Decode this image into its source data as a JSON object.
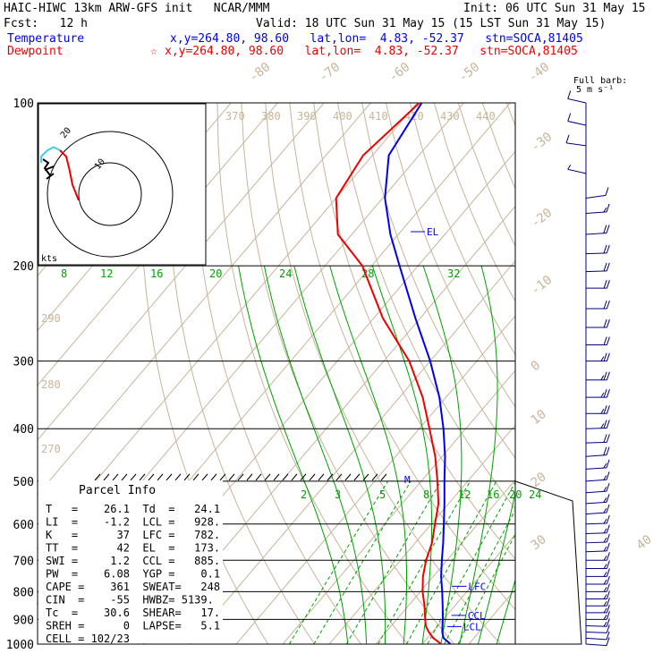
{
  "header": {
    "model": "HAIC-HIWC 13km ARW-GFS init   NCAR/MMM",
    "init": "Init: 06 UTC Sun 31 May 15",
    "fcst": "Fcst:   12 h",
    "valid": "Valid: 18 UTC Sun 31 May 15 (15 LST Sun 31 May 15)",
    "temp_label": "Temperature",
    "temp_info": "x,y=264.80, 98.60   lat,lon=  4.83, -52.37   stn=SOCA,81405",
    "dew_label": "Dewpoint",
    "dew_info": "x,y=264.80, 98.60   lat,lon=  4.83, -52.37   stn=SOCA,81405",
    "dew_marker": "☆",
    "barb_title_1": "Full barb:",
    "barb_title_2": "5 m s⁻¹"
  },
  "parcel": {
    "title": "Parcel Info",
    "rows": [
      "T   =    26.1  Td  =   24.1",
      "LI  =    -1.2  LCL =   928.",
      "K   =      37  LFC =   782.",
      "TT  =      42  EL  =   173.",
      "SWI =     1.2  CCL =   885.",
      "PW  =    6.08  YGP =    0.1",
      "CAPE =    361  SWEAT=   248",
      "CIN  =    -55  HWBZ= 5139.",
      "Tc  =    30.6  SHEAR=   17.",
      "SREH =      0  LAPSE=   5.1",
      "CELL = 102/23"
    ]
  },
  "levels": {
    "el": "EL",
    "lfc": "LFC",
    "ccl": "CCL",
    "lcl": "LCL",
    "m": "M"
  },
  "hodograph": {
    "units": "kts",
    "ring_labels": [
      "10",
      "20"
    ]
  },
  "colors": {
    "temperature": "#0000ee",
    "dewpoint": "#ee0000",
    "isotherm": "#c8b49a",
    "adiabat": "#00a000",
    "barb": "#000080",
    "hodo": "#44ccee"
  },
  "chart_data": {
    "type": "skew-t",
    "pressure_ticks": [
      100,
      200,
      300,
      400,
      500,
      600,
      700,
      800,
      900,
      1000
    ],
    "isotherm_labels": [
      "-80",
      "-70",
      "-60",
      "-50",
      "-40",
      "-30",
      "-20",
      "-10",
      "0",
      "10",
      "20",
      "30",
      "40"
    ],
    "theta_labels": [
      "370",
      "380",
      "390",
      "400",
      "410",
      "420",
      "430",
      "440"
    ],
    "theta_low_labels": [
      "290",
      "280",
      "270"
    ],
    "moist_labels": [
      "8",
      "12",
      "16",
      "20",
      "24",
      "28",
      "32"
    ],
    "mixing_labels": [
      "2",
      "3",
      "5",
      "8",
      "12",
      "16",
      "20",
      "24"
    ],
    "temperature_profile": [
      {
        "p": 1000,
        "t": 26.1
      },
      {
        "p": 975,
        "t": 23.5
      },
      {
        "p": 950,
        "t": 22.1
      },
      {
        "p": 925,
        "t": 21.0
      },
      {
        "p": 900,
        "t": 19.9
      },
      {
        "p": 850,
        "t": 17.4
      },
      {
        "p": 800,
        "t": 14.7
      },
      {
        "p": 750,
        "t": 11.7
      },
      {
        "p": 700,
        "t": 8.9
      },
      {
        "p": 650,
        "t": 6.0
      },
      {
        "p": 600,
        "t": 2.7
      },
      {
        "p": 550,
        "t": -0.9
      },
      {
        "p": 500,
        "t": -5.0
      },
      {
        "p": 450,
        "t": -9.4
      },
      {
        "p": 400,
        "t": -14.8
      },
      {
        "p": 350,
        "t": -21.4
      },
      {
        "p": 300,
        "t": -30.0
      },
      {
        "p": 250,
        "t": -41.0
      },
      {
        "p": 200,
        "t": -54.0
      },
      {
        "p": 175,
        "t": -61.7
      },
      {
        "p": 150,
        "t": -69.5
      },
      {
        "p": 125,
        "t": -76.5
      },
      {
        "p": 100,
        "t": -79.0
      }
    ],
    "dewpoint_profile": [
      {
        "p": 1000,
        "t": 24.1
      },
      {
        "p": 975,
        "t": 21.3
      },
      {
        "p": 950,
        "t": 19.2
      },
      {
        "p": 925,
        "t": 17.4
      },
      {
        "p": 900,
        "t": 16.1
      },
      {
        "p": 850,
        "t": 13.5
      },
      {
        "p": 800,
        "t": 10.5
      },
      {
        "p": 750,
        "t": 7.8
      },
      {
        "p": 700,
        "t": 5.5
      },
      {
        "p": 650,
        "t": 3.6
      },
      {
        "p": 600,
        "t": 0.8
      },
      {
        "p": 550,
        "t": -2.2
      },
      {
        "p": 500,
        "t": -6.5
      },
      {
        "p": 450,
        "t": -11.5
      },
      {
        "p": 400,
        "t": -17.8
      },
      {
        "p": 350,
        "t": -25.0
      },
      {
        "p": 300,
        "t": -34.5
      },
      {
        "p": 250,
        "t": -48.0
      },
      {
        "p": 200,
        "t": -62.0
      },
      {
        "p": 175,
        "t": -73.0
      },
      {
        "p": 150,
        "t": -80.0
      },
      {
        "p": 125,
        "t": -82.0
      },
      {
        "p": 100,
        "t": -79.5
      }
    ],
    "wind_barbs": [
      {
        "p": 100,
        "dir": 300,
        "speed": 10
      },
      {
        "p": 110,
        "dir": 300,
        "speed": 10
      },
      {
        "p": 120,
        "dir": 290,
        "speed": 10
      },
      {
        "p": 135,
        "dir": 300,
        "speed": 5
      },
      {
        "p": 150,
        "dir": 70,
        "speed": 10
      },
      {
        "p": 160,
        "dir": 80,
        "speed": 15
      },
      {
        "p": 175,
        "dir": 80,
        "speed": 20
      },
      {
        "p": 190,
        "dir": 85,
        "speed": 20
      },
      {
        "p": 205,
        "dir": 85,
        "speed": 20
      },
      {
        "p": 220,
        "dir": 90,
        "speed": 20
      },
      {
        "p": 240,
        "dir": 90,
        "speed": 20
      },
      {
        "p": 260,
        "dir": 90,
        "speed": 20
      },
      {
        "p": 280,
        "dir": 90,
        "speed": 20
      },
      {
        "p": 300,
        "dir": 90,
        "speed": 25
      },
      {
        "p": 325,
        "dir": 90,
        "speed": 25
      },
      {
        "p": 350,
        "dir": 90,
        "speed": 25
      },
      {
        "p": 375,
        "dir": 90,
        "speed": 25
      },
      {
        "p": 400,
        "dir": 85,
        "speed": 25
      },
      {
        "p": 425,
        "dir": 85,
        "speed": 20
      },
      {
        "p": 450,
        "dir": 80,
        "speed": 20
      },
      {
        "p": 475,
        "dir": 80,
        "speed": 15
      },
      {
        "p": 500,
        "dir": 80,
        "speed": 15
      },
      {
        "p": 525,
        "dir": 80,
        "speed": 15
      },
      {
        "p": 550,
        "dir": 80,
        "speed": 15
      },
      {
        "p": 575,
        "dir": 80,
        "speed": 15
      },
      {
        "p": 600,
        "dir": 85,
        "speed": 15
      },
      {
        "p": 625,
        "dir": 85,
        "speed": 15
      },
      {
        "p": 650,
        "dir": 85,
        "speed": 15
      },
      {
        "p": 675,
        "dir": 85,
        "speed": 15
      },
      {
        "p": 700,
        "dir": 90,
        "speed": 15
      },
      {
        "p": 725,
        "dir": 90,
        "speed": 15
      },
      {
        "p": 750,
        "dir": 90,
        "speed": 15
      },
      {
        "p": 775,
        "dir": 90,
        "speed": 15
      },
      {
        "p": 800,
        "dir": 90,
        "speed": 15
      },
      {
        "p": 825,
        "dir": 90,
        "speed": 15
      },
      {
        "p": 850,
        "dir": 90,
        "speed": 15
      },
      {
        "p": 875,
        "dir": 90,
        "speed": 15
      },
      {
        "p": 900,
        "dir": 90,
        "speed": 15
      },
      {
        "p": 925,
        "dir": 95,
        "speed": 15
      },
      {
        "p": 950,
        "dir": 95,
        "speed": 10
      },
      {
        "p": 975,
        "dir": 100,
        "speed": 10
      },
      {
        "p": 1000,
        "dir": 100,
        "speed": 10
      }
    ],
    "hodograph_points": [
      {
        "u": -10,
        "v": -2
      },
      {
        "u": -12,
        "v": 3
      },
      {
        "u": -13,
        "v": 8
      },
      {
        "u": -14,
        "v": 12
      },
      {
        "u": -16,
        "v": 14
      },
      {
        "u": -18,
        "v": 15
      },
      {
        "u": -20,
        "v": 14
      },
      {
        "u": -22,
        "v": 12
      },
      {
        "u": -22,
        "v": 10
      }
    ]
  }
}
